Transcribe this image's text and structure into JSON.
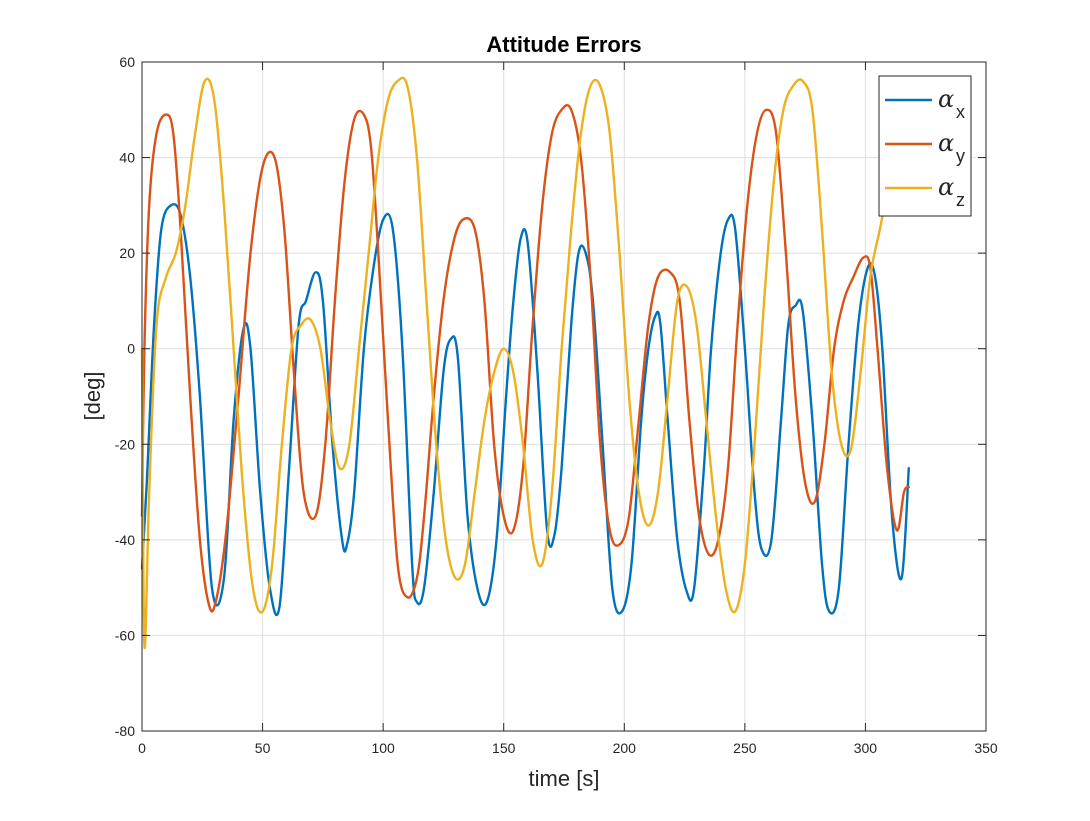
{
  "chart_data": {
    "type": "line",
    "title": "Attitude Errors",
    "xlabel": "time [s]",
    "ylabel": "[deg]",
    "xlim": [
      0,
      350
    ],
    "ylim": [
      -80,
      60
    ],
    "x_ticks": [
      "0",
      "50",
      "100",
      "150",
      "200",
      "250",
      "300",
      "350"
    ],
    "y_ticks": [
      "-80",
      "-60",
      "-40",
      "-20",
      "0",
      "20",
      "40",
      "60"
    ],
    "grid": true,
    "legend_position": "top-right",
    "series": [
      {
        "name": "α_x",
        "legend_symbol": "α",
        "legend_sub": "x",
        "color": "#0072BD",
        "x": [
          0,
          2,
          5,
          8,
          12,
          16,
          20,
          24,
          29,
          34,
          38,
          42,
          45,
          49,
          53,
          57,
          61,
          65,
          68,
          72,
          75,
          79,
          83,
          85,
          88,
          92,
          96,
          100,
          104,
          108,
          112,
          114,
          117,
          121,
          125,
          128,
          131,
          135,
          139,
          143,
          147,
          151,
          154,
          157,
          160,
          164,
          168,
          171,
          174,
          178,
          181,
          184,
          187,
          191,
          195,
          199,
          203,
          207,
          210,
          213,
          215,
          218,
          222,
          226,
          229,
          233,
          236,
          240,
          243,
          246,
          250,
          254,
          257,
          261,
          265,
          268,
          271,
          274,
          278,
          282,
          285,
          289,
          293,
          297,
          301,
          304,
          307,
          311,
          315,
          318
        ],
        "y": [
          -46,
          -28,
          5,
          25,
          30,
          28,
          15,
          -10,
          -50,
          -48,
          -15,
          4,
          0,
          -30,
          -50,
          -54,
          -25,
          5,
          10,
          16,
          10,
          -20,
          -40,
          -41,
          -30,
          0,
          17,
          27,
          25,
          0,
          -45,
          -53,
          -50,
          -30,
          -5,
          2,
          -2,
          -35,
          -50,
          -53,
          -40,
          -10,
          10,
          23,
          22,
          -5,
          -38,
          -39,
          -25,
          5,
          20,
          20,
          10,
          -20,
          -50,
          -55,
          -45,
          -15,
          0,
          7,
          5,
          -15,
          -40,
          -51,
          -50,
          -25,
          0,
          20,
          27,
          25,
          0,
          -30,
          -42,
          -40,
          -15,
          5,
          9,
          8,
          -15,
          -45,
          -55,
          -50,
          -20,
          5,
          17,
          15,
          0,
          -35,
          -48,
          -25
        ]
      },
      {
        "name": "α_y",
        "legend_symbol": "α",
        "legend_sub": "y",
        "color": "#D95319",
        "x": [
          0,
          1,
          3,
          6,
          10,
          13,
          16,
          20,
          24,
          28,
          31,
          35,
          40,
          45,
          50,
          55,
          59,
          63,
          67,
          72,
          76,
          80,
          84,
          88,
          92,
          95,
          98,
          102,
          106,
          110,
          114,
          117,
          121,
          125,
          129,
          133,
          138,
          142,
          146,
          150,
          154,
          158,
          162,
          166,
          170,
          174,
          178,
          182,
          186,
          190,
          194,
          198,
          202,
          206,
          210,
          214,
          219,
          223,
          227,
          231,
          235,
          239,
          243,
          247,
          251,
          255,
          259,
          263,
          267,
          271,
          275,
          279,
          283,
          287,
          291,
          295,
          299,
          302,
          305,
          309,
          313,
          316,
          318
        ],
        "y": [
          -35,
          0,
          30,
          45,
          49,
          45,
          25,
          -10,
          -40,
          -54,
          -52,
          -38,
          -10,
          20,
          38,
          40,
          25,
          -5,
          -30,
          -35,
          -20,
          10,
          35,
          48,
          49,
          42,
          20,
          -15,
          -45,
          -52,
          -48,
          -35,
          -10,
          10,
          22,
          27,
          25,
          10,
          -20,
          -35,
          -38,
          -25,
          5,
          30,
          45,
          50,
          50,
          40,
          15,
          -20,
          -38,
          -41,
          -35,
          -15,
          5,
          15,
          16,
          10,
          -15,
          -35,
          -43,
          -40,
          -25,
          5,
          30,
          45,
          50,
          45,
          20,
          -10,
          -28,
          -32,
          -20,
          0,
          10,
          15,
          19,
          17,
          0,
          -25,
          -38,
          -30,
          -29
        ]
      },
      {
        "name": "α_z",
        "legend_symbol": "α",
        "legend_sub": "z",
        "color": "#EDB120",
        "x": [
          0,
          1,
          3,
          6,
          10,
          14,
          18,
          22,
          26,
          30,
          34,
          38,
          42,
          46,
          50,
          54,
          58,
          62,
          66,
          70,
          74,
          78,
          82,
          86,
          90,
          94,
          98,
          102,
          106,
          110,
          114,
          118,
          122,
          126,
          130,
          134,
          138,
          142,
          146,
          150,
          154,
          158,
          162,
          166,
          170,
          174,
          178,
          182,
          186,
          190,
          194,
          198,
          202,
          206,
          210,
          214,
          218,
          222,
          226,
          230,
          234,
          238,
          242,
          246,
          250,
          254,
          258,
          262,
          266,
          270,
          274,
          278,
          282,
          286,
          290,
          294,
          298,
          302,
          306,
          310,
          314,
          318
        ],
        "y": [
          0,
          -62,
          -30,
          5,
          15,
          20,
          30,
          45,
          56,
          52,
          30,
          0,
          -30,
          -50,
          -55,
          -45,
          -20,
          0,
          5,
          6,
          0,
          -15,
          -25,
          -20,
          0,
          20,
          40,
          52,
          56,
          55,
          40,
          10,
          -20,
          -40,
          -48,
          -45,
          -30,
          -15,
          -5,
          0,
          -5,
          -20,
          -40,
          -45,
          -30,
          0,
          25,
          45,
          55,
          55,
          45,
          20,
          -10,
          -30,
          -37,
          -30,
          -10,
          10,
          13,
          5,
          -15,
          -35,
          -50,
          -55,
          -45,
          -20,
          10,
          35,
          50,
          55,
          56,
          50,
          25,
          -5,
          -20,
          -21,
          -5,
          15,
          25,
          35,
          40,
          30
        ]
      }
    ]
  }
}
